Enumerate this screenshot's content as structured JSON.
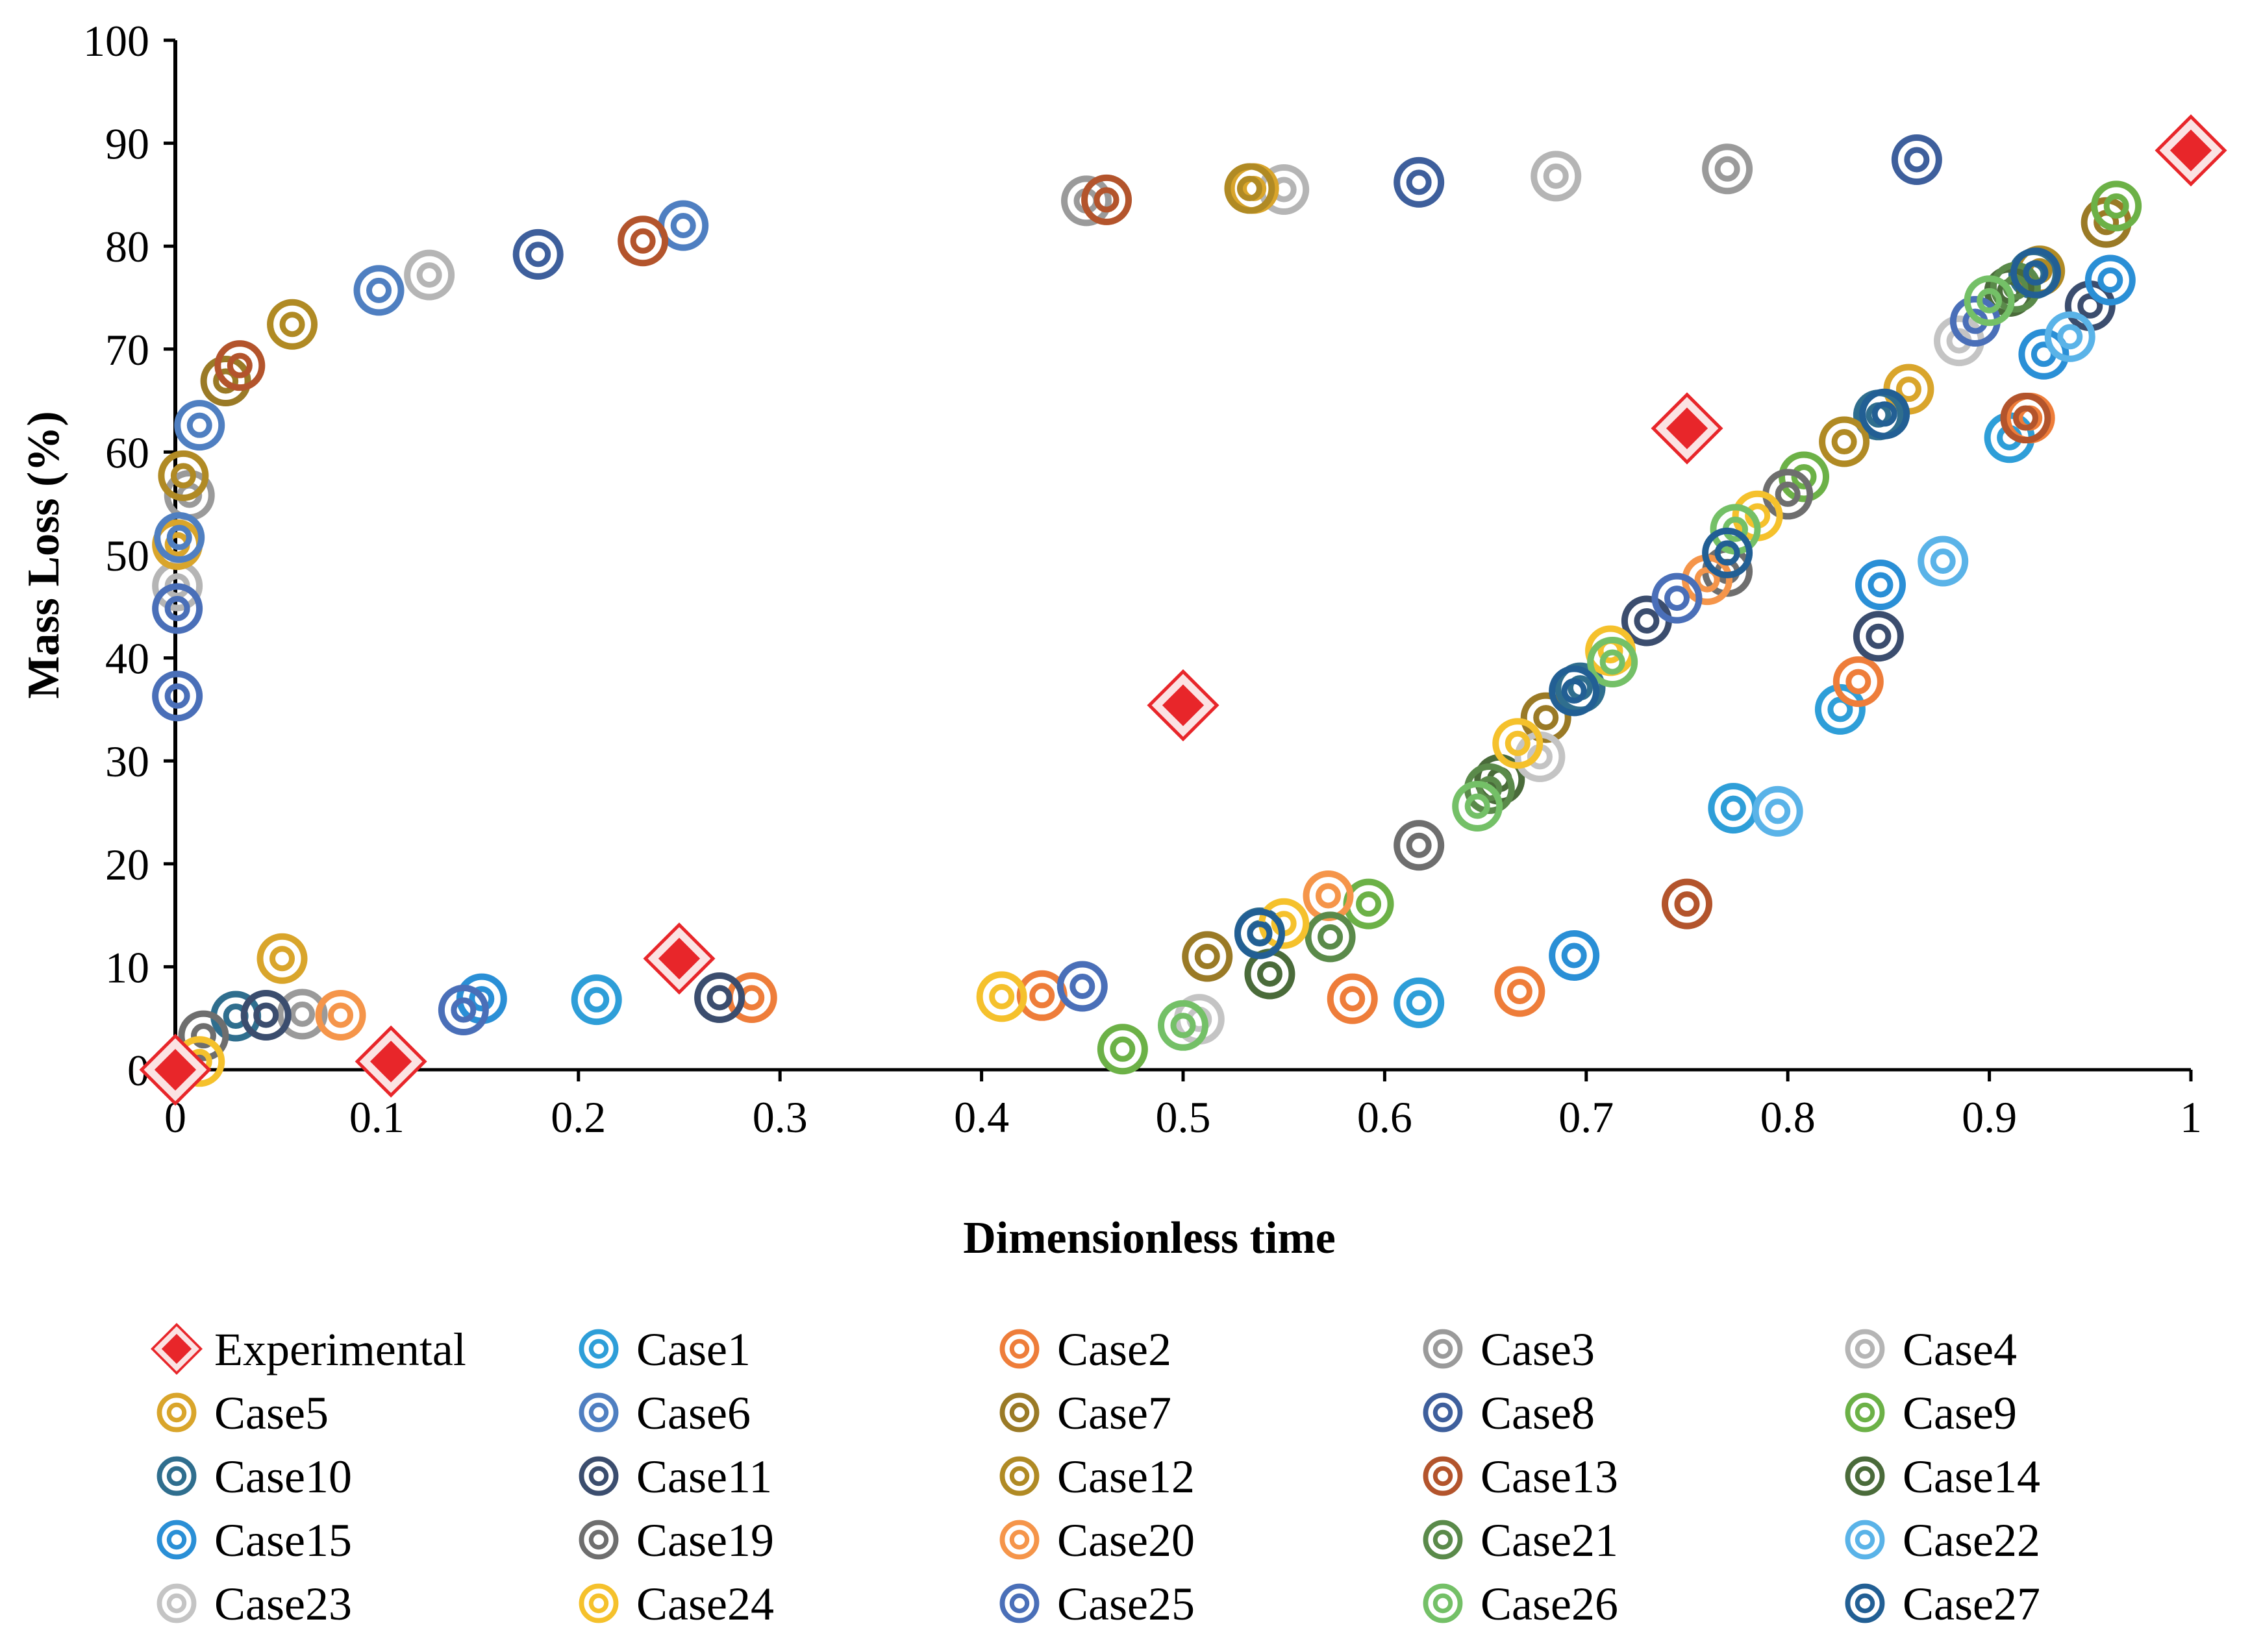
{
  "chart_data": {
    "type": "scatter",
    "title": "",
    "xlabel": "Dimensionless time",
    "ylabel": "Mass Loss (%)",
    "xlim": [
      0,
      1
    ],
    "ylim": [
      0,
      100
    ],
    "xticks": [
      "0",
      "0.1",
      "0.2",
      "0.3",
      "0.4",
      "0.5",
      "0.6",
      "0.7",
      "0.8",
      "0.9",
      "1"
    ],
    "yticks": [
      "0",
      "10",
      "20",
      "30",
      "40",
      "50",
      "60",
      "70",
      "80",
      "90",
      "100"
    ],
    "grid": false,
    "legend_position": "bottom",
    "series": [
      {
        "name": "Experimental",
        "marker": "diamond",
        "color": "#e8262a",
        "x": [
          0,
          0.107,
          0.25,
          0.5,
          0.75,
          1.0
        ],
        "y": [
          0,
          0.8,
          10.8,
          35.4,
          62.3,
          89.3
        ]
      },
      {
        "name": "Case1",
        "marker": "ring",
        "color": "#2e9ed8",
        "x": [
          0,
          0.209,
          0.617,
          0.773,
          0.826,
          0.91,
          1.0
        ],
        "y": [
          0,
          6.8,
          6.5,
          25.4,
          35.0,
          61.4,
          89.3
        ]
      },
      {
        "name": "Case2",
        "marker": "ring",
        "color": "#ee7d3a",
        "x": [
          0,
          0.286,
          0.43,
          0.584,
          0.667,
          0.835,
          0.92,
          1.0
        ],
        "y": [
          0,
          7.0,
          7.2,
          6.9,
          7.6,
          37.7,
          63.3,
          89.3
        ]
      },
      {
        "name": "Case3",
        "marker": "ring",
        "color": "#9a9a9a",
        "x": [
          0,
          0.007,
          0.063,
          0.452,
          0.77,
          1.0
        ],
        "y": [
          0,
          55.8,
          5.4,
          84.4,
          87.5,
          89.3
        ]
      },
      {
        "name": "Case4",
        "marker": "ring",
        "color": "#b5b5b5",
        "x": [
          0,
          0.001,
          0.126,
          0.55,
          0.685,
          1.0
        ],
        "y": [
          0,
          47.0,
          77.2,
          85.5,
          86.8,
          89.3
        ]
      },
      {
        "name": "Case5",
        "marker": "ring",
        "color": "#d9a52b",
        "x": [
          0,
          0.001,
          0.053,
          0.535,
          0.86,
          1.0
        ],
        "y": [
          0,
          51.0,
          10.8,
          85.6,
          66.1,
          89.3
        ]
      },
      {
        "name": "Case6",
        "marker": "ring",
        "color": "#4f7fc1",
        "x": [
          0,
          0.002,
          0.012,
          0.101,
          0.252,
          1.0
        ],
        "y": [
          0,
          51.7,
          62.6,
          75.7,
          82.0,
          89.3
        ]
      },
      {
        "name": "Case7",
        "marker": "ring",
        "color": "#9a7a26",
        "x": [
          0,
          0.025,
          0.512,
          0.68,
          0.958,
          1.0
        ],
        "y": [
          0,
          66.9,
          11.0,
          34.2,
          82.3,
          89.3
        ]
      },
      {
        "name": "Case8",
        "marker": "ring",
        "color": "#3e5f9c",
        "x": [
          0,
          0.18,
          0.617,
          0.864,
          1.0
        ],
        "y": [
          0,
          79.2,
          86.2,
          88.4,
          89.3
        ]
      },
      {
        "name": "Case9",
        "marker": "ring",
        "color": "#6cb147",
        "x": [
          0,
          0.47,
          0.592,
          0.808,
          0.963,
          1.0
        ],
        "y": [
          0,
          2.0,
          16.1,
          57.6,
          83.9,
          89.3
        ]
      },
      {
        "name": "Case10",
        "marker": "ring",
        "color": "#2f6e8e",
        "x": [
          0,
          0.03,
          0.538,
          0.697,
          0.845,
          0.922,
          1.0
        ],
        "y": [
          0,
          5.2,
          13.3,
          37.1,
          63.6,
          77.3,
          89.3
        ]
      },
      {
        "name": "Case11",
        "marker": "ring",
        "color": "#3b4d6e",
        "x": [
          0,
          0.045,
          0.27,
          0.73,
          0.845,
          0.95,
          1.0
        ],
        "y": [
          0,
          5.3,
          7.0,
          43.6,
          42.1,
          74.2,
          89.3
        ]
      },
      {
        "name": "Case12",
        "marker": "ring",
        "color": "#b08a24",
        "x": [
          0,
          0.004,
          0.058,
          0.533,
          0.828,
          0.925,
          1.0
        ],
        "y": [
          0,
          57.7,
          72.4,
          85.6,
          61.0,
          77.6,
          89.3
        ]
      },
      {
        "name": "Case13",
        "marker": "ring",
        "color": "#b3542c",
        "x": [
          0,
          0.032,
          0.232,
          0.462,
          0.75,
          0.918,
          1.0
        ],
        "y": [
          0,
          68.4,
          80.5,
          84.5,
          16.1,
          63.3,
          89.3
        ]
      },
      {
        "name": "Case14",
        "marker": "ring",
        "color": "#4a6b3a",
        "x": [
          0,
          0.543,
          0.657,
          0.91,
          1.0
        ],
        "y": [
          0,
          9.3,
          28.2,
          75.6,
          89.3
        ]
      },
      {
        "name": "Case15",
        "marker": "ring",
        "color": "#2a8fd6",
        "x": [
          0,
          0.152,
          0.694,
          0.846,
          0.927,
          0.96,
          1.0
        ],
        "y": [
          0,
          6.9,
          11.1,
          47.1,
          69.5,
          76.7,
          89.3
        ]
      },
      {
        "name": "Case19",
        "marker": "ring",
        "color": "#6e6e6e",
        "x": [
          0,
          0.014,
          0.617,
          0.77,
          0.8,
          1.0
        ],
        "y": [
          0,
          3.3,
          21.8,
          48.4,
          55.9,
          89.3
        ]
      },
      {
        "name": "Case20",
        "marker": "ring",
        "color": "#f5954a",
        "x": [
          0,
          0.082,
          0.572,
          0.76,
          1.0
        ],
        "y": [
          0,
          5.3,
          16.9,
          47.6,
          89.3
        ]
      },
      {
        "name": "Case21",
        "marker": "ring",
        "color": "#5a8a4a",
        "x": [
          0,
          0.573,
          0.652,
          0.913,
          1.0
        ],
        "y": [
          0,
          12.9,
          27.3,
          76.0,
          89.3
        ]
      },
      {
        "name": "Case22",
        "marker": "ring",
        "color": "#5ab3e8",
        "x": [
          0,
          0.795,
          0.877,
          0.94,
          1.0
        ],
        "y": [
          0,
          25.1,
          49.4,
          71.2,
          89.3
        ]
      },
      {
        "name": "Case23",
        "marker": "ring",
        "color": "#c4c4c4",
        "x": [
          0,
          0.508,
          0.677,
          0.885,
          1.0
        ],
        "y": [
          0,
          4.9,
          30.4,
          70.8,
          89.3
        ]
      },
      {
        "name": "Case24",
        "marker": "ring",
        "color": "#f5c12c",
        "x": [
          0,
          0.012,
          0.41,
          0.55,
          0.666,
          0.712,
          0.785,
          1.0
        ],
        "y": [
          0,
          0.8,
          7.1,
          14.2,
          31.7,
          40.7,
          53.8,
          89.3
        ]
      },
      {
        "name": "Case25",
        "marker": "ring",
        "color": "#4a6fb8",
        "x": [
          0,
          0.001,
          0.001,
          0.143,
          0.45,
          0.745,
          0.893,
          1.0
        ],
        "y": [
          0,
          36.3,
          44.8,
          5.8,
          8.1,
          45.8,
          72.7,
          89.3
        ]
      },
      {
        "name": "Case26",
        "marker": "ring",
        "color": "#74c067",
        "x": [
          0,
          0.5,
          0.646,
          0.713,
          0.774,
          0.9,
          1.0
        ],
        "y": [
          0,
          4.3,
          25.6,
          39.6,
          52.5,
          74.7,
          89.3
        ]
      },
      {
        "name": "Case27",
        "marker": "ring",
        "color": "#225f94",
        "x": [
          0,
          0.538,
          0.694,
          0.77,
          0.848,
          0.923,
          1.0
        ],
        "y": [
          0,
          13.2,
          36.8,
          50.2,
          63.7,
          77.4,
          89.3
        ]
      }
    ]
  }
}
